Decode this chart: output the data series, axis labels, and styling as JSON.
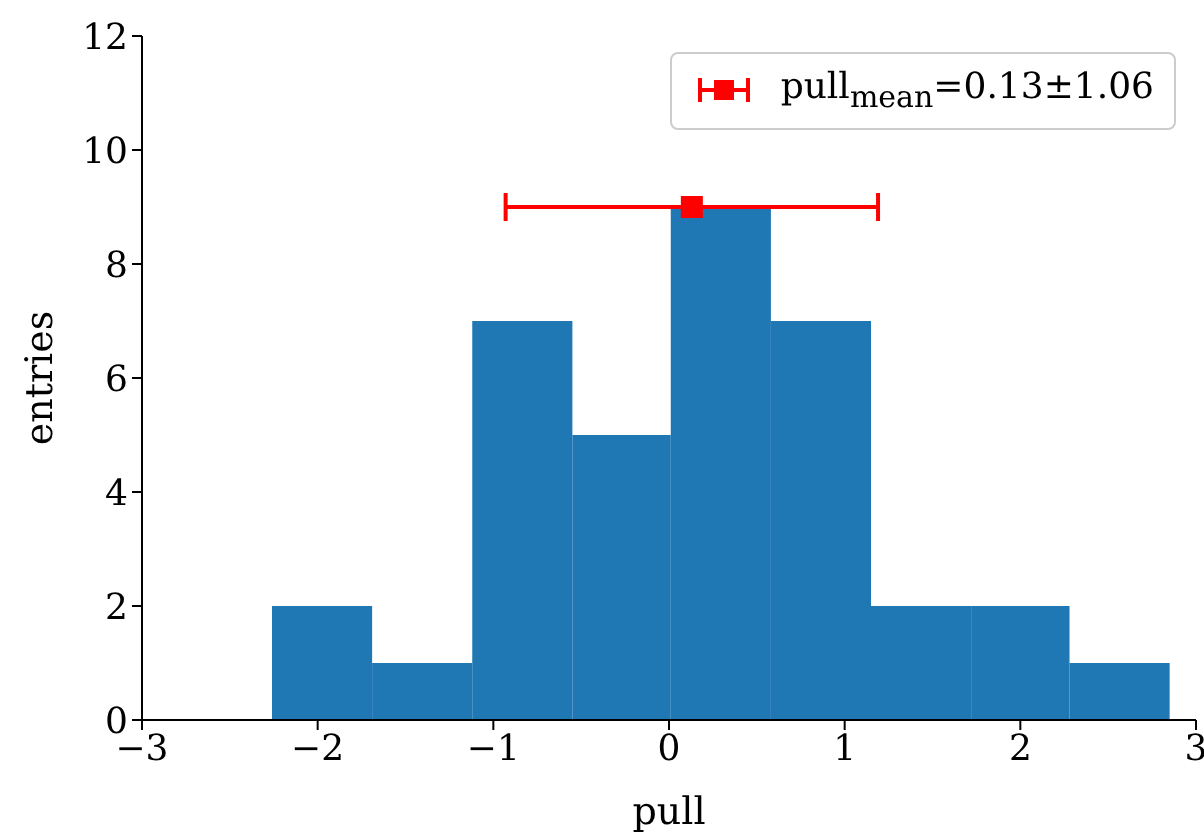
{
  "chart_data": {
    "type": "histogram",
    "xlabel": "pull",
    "ylabel": "entries",
    "bins": [
      -2.26,
      -1.69,
      -1.12,
      -0.55,
      0.01,
      0.58,
      1.15,
      1.72,
      2.28,
      2.85
    ],
    "values": [
      2,
      1,
      7,
      5,
      9,
      7,
      2,
      2,
      1
    ],
    "color": "#1f77b4",
    "xlim": [
      -3,
      3
    ],
    "xticks": [
      {
        "value": -3,
        "label": "−3"
      },
      {
        "value": -2,
        "label": "−2"
      },
      {
        "value": -1,
        "label": "−1"
      },
      0,
      1,
      2,
      3
    ],
    "ylim": [
      0,
      12
    ],
    "yticks": [
      0,
      2,
      4,
      6,
      8,
      10,
      12
    ],
    "legend": "top right",
    "series": [
      {
        "type": "scatter",
        "name": "pull$_{mean}$=0.13±1.06",
        "color": "#ff0000",
        "x": [
          0.13
        ],
        "values": [
          9
        ],
        "xerrors": [
          1.06
        ],
        "marker": "square"
      }
    ]
  }
}
